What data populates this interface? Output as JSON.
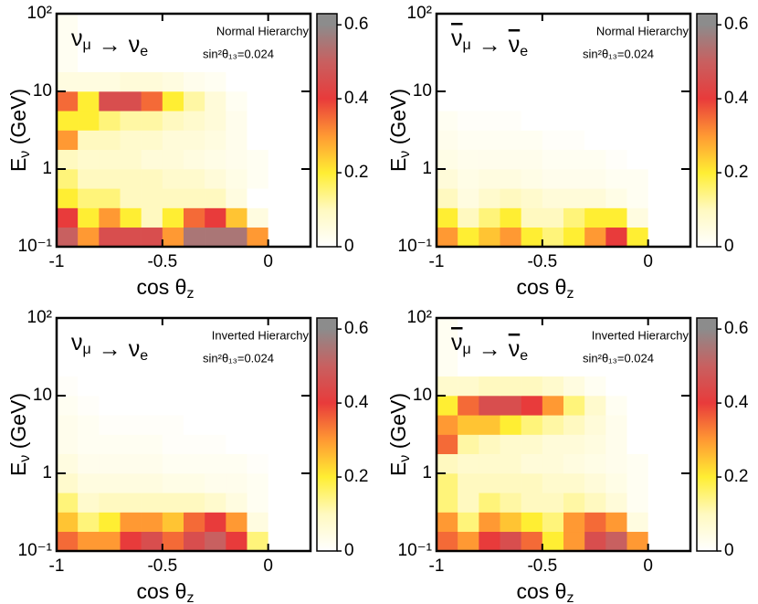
{
  "chart_data": [
    {
      "type": "heatmap",
      "process": [
        {
          "base": "ν",
          "sub": "μ",
          "bar": false
        },
        {
          "base": "→"
        },
        {
          "base": "ν",
          "sub": "e",
          "bar": false
        }
      ],
      "hierarchy": "Normal Hierarchy",
      "mixing": "sin²θ₁₃=0.024",
      "xlabel": {
        "base": "cos θ",
        "sub": "z"
      },
      "ylabel": {
        "base": "E",
        "sub": "ν",
        "rest": " (GeV)"
      },
      "xlim": [
        -1,
        0.2
      ],
      "xticks": [
        -1,
        -0.5,
        0
      ],
      "ylim": [
        0.1,
        100
      ],
      "log_y": true,
      "yticks": [
        {
          "value": 0.1,
          "label": "10⁻¹"
        },
        1,
        10,
        {
          "value": 100,
          "label": "10²"
        }
      ],
      "zlim": [
        0,
        0.63
      ],
      "zticks": [
        0,
        0.2,
        0.4,
        0.6
      ],
      "colorscale": [
        [
          0,
          "#ffffff"
        ],
        [
          0.1,
          "#fff9c0"
        ],
        [
          0.2,
          "#ffee33"
        ],
        [
          0.3,
          "#ff9933"
        ],
        [
          0.4,
          "#e83b3b"
        ],
        [
          0.5,
          "#c86060"
        ],
        [
          0.6,
          "#8c8c8c"
        ]
      ],
      "xbins": [
        -1,
        -0.9,
        -0.8,
        -0.7,
        -0.6,
        -0.5,
        -0.4,
        -0.3,
        -0.2,
        -0.1,
        0,
        0.1,
        0.2
      ],
      "ybins": [
        0.1,
        0.178,
        0.316,
        0.562,
        1,
        1.78,
        3.16,
        5.62,
        10,
        17.8,
        100
      ],
      "z": [
        [
          0.5,
          0.3,
          0.45,
          0.45,
          0.45,
          0.3,
          0.55,
          0.55,
          0.55,
          0.3,
          0,
          0
        ],
        [
          0.4,
          0.2,
          0.3,
          0.2,
          0.1,
          0.2,
          0.35,
          0.4,
          0.25,
          0.05,
          0,
          0
        ],
        [
          0.2,
          0.15,
          0.15,
          0.1,
          0.1,
          0.1,
          0.1,
          0.1,
          0.05,
          0,
          0,
          0
        ],
        [
          0.15,
          0.1,
          0.1,
          0.1,
          0.1,
          0.08,
          0.08,
          0.06,
          0.04,
          0.02,
          0,
          0
        ],
        [
          0.1,
          0.08,
          0.08,
          0.08,
          0.06,
          0.06,
          0.05,
          0.04,
          0.03,
          0.02,
          0,
          0
        ],
        [
          0.3,
          0.1,
          0.1,
          0.08,
          0.08,
          0.06,
          0.06,
          0.05,
          0.03,
          0,
          0,
          0
        ],
        [
          0.2,
          0.2,
          0.15,
          0.12,
          0.12,
          0.1,
          0.08,
          0.06,
          0.03,
          0,
          0,
          0
        ],
        [
          0.35,
          0.2,
          0.45,
          0.45,
          0.35,
          0.2,
          0.12,
          0.06,
          0.02,
          0,
          0,
          0
        ],
        [
          0.05,
          0.05,
          0.05,
          0.06,
          0.06,
          0.05,
          0.03,
          0.02,
          0,
          0,
          0,
          0
        ],
        [
          0.02,
          0,
          0,
          0,
          0,
          0,
          0,
          0,
          0,
          0,
          0,
          0
        ]
      ]
    },
    {
      "type": "heatmap",
      "process": [
        {
          "base": "ν",
          "sub": "μ",
          "bar": true
        },
        {
          "base": "→"
        },
        {
          "base": "ν",
          "sub": "e",
          "bar": true
        }
      ],
      "hierarchy": "Normal Hierarchy",
      "mixing": "sin²θ₁₃=0.024",
      "xlabel": {
        "base": "cos θ",
        "sub": "z"
      },
      "ylabel": {
        "base": "E",
        "sub": "ν",
        "rest": " (GeV)"
      },
      "xlim": [
        -1,
        0.2
      ],
      "xticks": [
        -1,
        -0.5,
        0
      ],
      "ylim": [
        0.1,
        100
      ],
      "log_y": true,
      "yticks": [
        {
          "value": 0.1,
          "label": "10⁻¹"
        },
        1,
        10,
        {
          "value": 100,
          "label": "10²"
        }
      ],
      "zlim": [
        0,
        0.63
      ],
      "zticks": [
        0,
        0.2,
        0.4,
        0.6
      ],
      "colorscale": [
        [
          0,
          "#ffffff"
        ],
        [
          0.1,
          "#fff9c0"
        ],
        [
          0.2,
          "#ffee33"
        ],
        [
          0.3,
          "#ff9933"
        ],
        [
          0.4,
          "#e83b3b"
        ],
        [
          0.5,
          "#c86060"
        ],
        [
          0.6,
          "#8c8c8c"
        ]
      ],
      "xbins": [
        -1,
        -0.9,
        -0.8,
        -0.7,
        -0.6,
        -0.5,
        -0.4,
        -0.3,
        -0.2,
        -0.1,
        0,
        0.1,
        0.2
      ],
      "ybins": [
        0.1,
        0.178,
        0.316,
        0.562,
        1,
        1.78,
        3.16,
        5.62,
        10,
        17.8,
        100
      ],
      "z": [
        [
          0.3,
          0.2,
          0.25,
          0.3,
          0.2,
          0.15,
          0.2,
          0.3,
          0.4,
          0.2,
          0,
          0
        ],
        [
          0.2,
          0.1,
          0.15,
          0.2,
          0.1,
          0.1,
          0.15,
          0.2,
          0.2,
          0.05,
          0,
          0
        ],
        [
          0.1,
          0.05,
          0.08,
          0.1,
          0.08,
          0.06,
          0.06,
          0.06,
          0.04,
          0.02,
          0,
          0
        ],
        [
          0.06,
          0.04,
          0.05,
          0.05,
          0.04,
          0.03,
          0.03,
          0.03,
          0.02,
          0.02,
          0,
          0
        ],
        [
          0.04,
          0.03,
          0.03,
          0.03,
          0.03,
          0.02,
          0.02,
          0.02,
          0.01,
          0,
          0,
          0
        ],
        [
          0.03,
          0.02,
          0.02,
          0.02,
          0.02,
          0.01,
          0.01,
          0,
          0,
          0,
          0,
          0
        ],
        [
          0.02,
          0.01,
          0.01,
          0.01,
          0,
          0,
          0,
          0,
          0,
          0,
          0,
          0
        ],
        [
          0,
          0,
          0,
          0,
          0,
          0,
          0,
          0,
          0,
          0,
          0,
          0
        ],
        [
          0,
          0,
          0,
          0,
          0,
          0,
          0,
          0,
          0,
          0,
          0,
          0
        ],
        [
          0,
          0,
          0,
          0,
          0,
          0,
          0,
          0,
          0,
          0,
          0,
          0
        ]
      ]
    },
    {
      "type": "heatmap",
      "process": [
        {
          "base": "ν",
          "sub": "μ",
          "bar": false
        },
        {
          "base": "→"
        },
        {
          "base": "ν",
          "sub": "e",
          "bar": false
        }
      ],
      "hierarchy": "Inverted Hierarchy",
      "mixing": "sin²θ₁₃=0.024",
      "xlabel": {
        "base": "cos θ",
        "sub": "z"
      },
      "ylabel": {
        "base": "E",
        "sub": "ν",
        "rest": " (GeV)"
      },
      "xlim": [
        -1,
        0.2
      ],
      "xticks": [
        -1,
        -0.5,
        0
      ],
      "ylim": [
        0.1,
        100
      ],
      "log_y": true,
      "yticks": [
        {
          "value": 0.1,
          "label": "10⁻¹"
        },
        1,
        10,
        {
          "value": 100,
          "label": "10²"
        }
      ],
      "zlim": [
        0,
        0.63
      ],
      "zticks": [
        0,
        0.2,
        0.4,
        0.6
      ],
      "colorscale": [
        [
          0,
          "#ffffff"
        ],
        [
          0.1,
          "#fff9c0"
        ],
        [
          0.2,
          "#ffee33"
        ],
        [
          0.3,
          "#ff9933"
        ],
        [
          0.4,
          "#e83b3b"
        ],
        [
          0.5,
          "#c86060"
        ],
        [
          0.6,
          "#8c8c8c"
        ]
      ],
      "xbins": [
        -1,
        -0.9,
        -0.8,
        -0.7,
        -0.6,
        -0.5,
        -0.4,
        -0.3,
        -0.2,
        -0.1,
        0,
        0.1,
        0.2
      ],
      "ybins": [
        0.1,
        0.178,
        0.316,
        0.562,
        1,
        1.78,
        3.16,
        5.62,
        10,
        17.8,
        100
      ],
      "z": [
        [
          0.35,
          0.3,
          0.3,
          0.4,
          0.45,
          0.35,
          0.45,
          0.5,
          0.4,
          0.15,
          0,
          0
        ],
        [
          0.25,
          0.15,
          0.2,
          0.3,
          0.3,
          0.25,
          0.35,
          0.4,
          0.3,
          0.05,
          0,
          0
        ],
        [
          0.15,
          0.08,
          0.1,
          0.1,
          0.1,
          0.1,
          0.1,
          0.08,
          0.05,
          0.02,
          0,
          0
        ],
        [
          0.08,
          0.05,
          0.05,
          0.05,
          0.05,
          0.04,
          0.04,
          0.03,
          0.03,
          0.02,
          0,
          0
        ],
        [
          0.05,
          0.03,
          0.03,
          0.03,
          0.03,
          0.02,
          0.02,
          0.02,
          0.02,
          0.01,
          0,
          0
        ],
        [
          0.03,
          0.02,
          0.02,
          0.02,
          0.02,
          0.01,
          0.01,
          0.01,
          0,
          0,
          0,
          0
        ],
        [
          0.03,
          0.02,
          0.01,
          0.01,
          0.01,
          0.01,
          0,
          0,
          0,
          0,
          0,
          0
        ],
        [
          0.02,
          0.01,
          0,
          0,
          0,
          0,
          0,
          0,
          0,
          0,
          0,
          0
        ],
        [
          0.01,
          0,
          0,
          0,
          0,
          0,
          0,
          0,
          0,
          0,
          0,
          0
        ],
        [
          0,
          0,
          0,
          0,
          0,
          0,
          0,
          0,
          0,
          0,
          0,
          0
        ]
      ]
    },
    {
      "type": "heatmap",
      "process": [
        {
          "base": "ν",
          "sub": "μ",
          "bar": true
        },
        {
          "base": "→"
        },
        {
          "base": "ν",
          "sub": "e",
          "bar": true
        }
      ],
      "hierarchy": "Inverted Hierarchy",
      "mixing": "sin²θ₁₃=0.024",
      "xlabel": {
        "base": "cos θ",
        "sub": "z"
      },
      "ylabel": {
        "base": "E",
        "sub": "ν",
        "rest": " (GeV)"
      },
      "xlim": [
        -1,
        0.2
      ],
      "xticks": [
        -1,
        -0.5,
        0
      ],
      "ylim": [
        0.1,
        100
      ],
      "log_y": true,
      "yticks": [
        {
          "value": 0.1,
          "label": "10⁻¹"
        },
        1,
        10,
        {
          "value": 100,
          "label": "10²"
        }
      ],
      "zlim": [
        0,
        0.63
      ],
      "zticks": [
        0,
        0.2,
        0.4,
        0.6
      ],
      "colorscale": [
        [
          0,
          "#ffffff"
        ],
        [
          0.1,
          "#fff9c0"
        ],
        [
          0.2,
          "#ffee33"
        ],
        [
          0.3,
          "#ff9933"
        ],
        [
          0.4,
          "#e83b3b"
        ],
        [
          0.5,
          "#c86060"
        ],
        [
          0.6,
          "#8c8c8c"
        ]
      ],
      "xbins": [
        -1,
        -0.9,
        -0.8,
        -0.7,
        -0.6,
        -0.5,
        -0.4,
        -0.3,
        -0.2,
        -0.1,
        0,
        0.1,
        0.2
      ],
      "ybins": [
        0.1,
        0.178,
        0.316,
        0.562,
        1,
        1.78,
        3.16,
        5.62,
        10,
        17.8,
        100
      ],
      "z": [
        [
          0.35,
          0.3,
          0.4,
          0.45,
          0.35,
          0.2,
          0.3,
          0.45,
          0.5,
          0.3,
          0,
          0
        ],
        [
          0.3,
          0.15,
          0.3,
          0.25,
          0.2,
          0.15,
          0.3,
          0.35,
          0.3,
          0.05,
          0,
          0
        ],
        [
          0.15,
          0.1,
          0.15,
          0.12,
          0.1,
          0.1,
          0.12,
          0.1,
          0.06,
          0.02,
          0,
          0
        ],
        [
          0.15,
          0.1,
          0.1,
          0.1,
          0.1,
          0.08,
          0.08,
          0.06,
          0.04,
          0.02,
          0,
          0
        ],
        [
          0.1,
          0.08,
          0.08,
          0.08,
          0.06,
          0.06,
          0.05,
          0.04,
          0.03,
          0.02,
          0,
          0
        ],
        [
          0.35,
          0.12,
          0.1,
          0.08,
          0.08,
          0.06,
          0.06,
          0.05,
          0.03,
          0,
          0,
          0
        ],
        [
          0.3,
          0.25,
          0.25,
          0.2,
          0.15,
          0.12,
          0.1,
          0.06,
          0.03,
          0,
          0,
          0
        ],
        [
          0.2,
          0.35,
          0.45,
          0.45,
          0.4,
          0.3,
          0.15,
          0.08,
          0.02,
          0,
          0,
          0
        ],
        [
          0.08,
          0.08,
          0.1,
          0.1,
          0.1,
          0.08,
          0.05,
          0.02,
          0,
          0,
          0,
          0
        ],
        [
          0.02,
          0,
          0,
          0,
          0,
          0,
          0,
          0,
          0,
          0,
          0,
          0
        ]
      ]
    }
  ]
}
